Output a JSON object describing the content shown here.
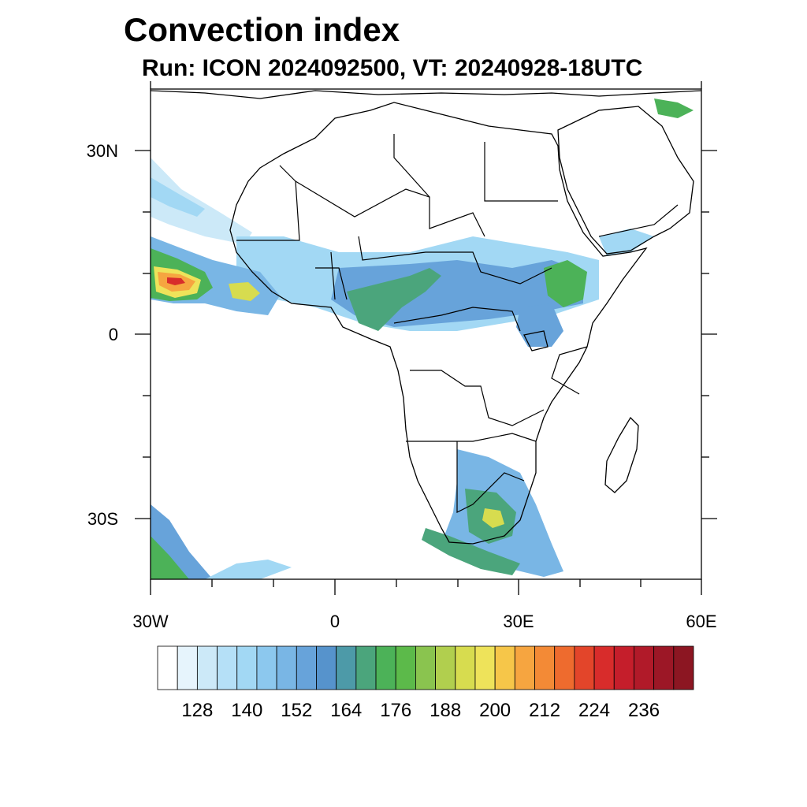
{
  "title": "Convection index",
  "subtitle": "Run: ICON 2024092500,  VT: 20240928-18UTC",
  "axes": {
    "lat_labels": [
      "30N",
      "0",
      "30S"
    ],
    "lon_labels": [
      "30W",
      "0",
      "30E",
      "60E"
    ]
  },
  "colorbar": {
    "colors": [
      "#ffffff",
      "#e6f4fc",
      "#cce9f8",
      "#b5e0f7",
      "#a2d8f4",
      "#8cc8ee",
      "#79b6e5",
      "#67a3da",
      "#5693cc",
      "#4d9aa8",
      "#4ba57c",
      "#4cb258",
      "#5cba4a",
      "#8ac44f",
      "#b1cf4e",
      "#d7dc4f",
      "#eee35a",
      "#f6c649",
      "#f6a540",
      "#f38a36",
      "#ee6b2e",
      "#e3452a",
      "#d82c2b",
      "#c51e2b",
      "#b11a29",
      "#9c1726",
      "#8c1622"
    ],
    "tick_labels": [
      "128",
      "140",
      "152",
      "164",
      "176",
      "188",
      "200",
      "212",
      "224",
      "236"
    ]
  },
  "colors": {
    "coastline": "#000000",
    "light_blue": "#a2d8f4",
    "mid_blue": "#67a3da",
    "green": "#4cb258",
    "yellow": "#eee35a",
    "orange": "#f6a540",
    "red": "#d82c2b"
  }
}
